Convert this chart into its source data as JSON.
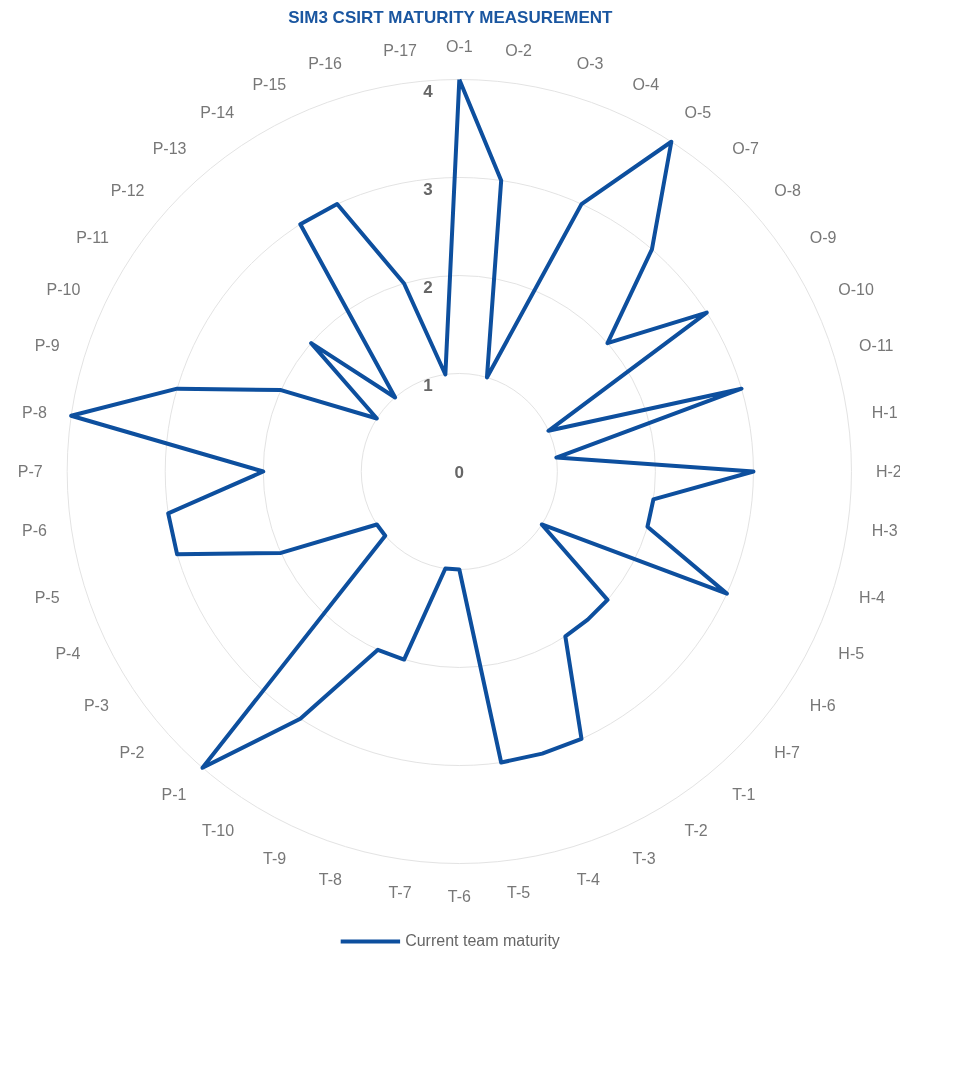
{
  "chart_data": {
    "type": "radar",
    "title": "SIM3 CSIRT MATURITY MEASUREMENT",
    "categories": [
      "O-1",
      "O-2",
      "O-3",
      "O-4",
      "O-5",
      "O-7",
      "O-8",
      "O-9",
      "O-10",
      "O-11",
      "H-1",
      "H-2",
      "H-3",
      "H-4",
      "H-5",
      "H-6",
      "H-7",
      "T-1",
      "T-2",
      "T-3",
      "T-4",
      "T-5",
      "T-6",
      "T-7",
      "T-8",
      "T-9",
      "T-10",
      "P-1",
      "P-2",
      "P-3",
      "P-4",
      "P-5",
      "P-6",
      "P-7",
      "P-8",
      "P-9",
      "P-10",
      "P-11",
      "P-12",
      "P-13",
      "P-14",
      "P-15",
      "P-16",
      "P-17"
    ],
    "series": [
      {
        "name": "Current team maturity",
        "color": "#0d4f9e",
        "values": [
          4,
          3,
          1,
          3,
          4,
          3,
          2,
          3,
          1,
          3,
          1,
          3,
          2,
          2,
          3,
          1,
          2,
          2,
          2,
          3,
          3,
          3,
          1,
          1,
          2,
          2,
          3,
          4,
          1,
          1,
          2,
          3,
          3,
          2,
          4,
          3,
          2,
          1,
          2,
          1,
          3,
          3,
          2,
          1
        ]
      }
    ],
    "ylim": [
      0,
      4
    ],
    "yticks": [
      0,
      1,
      2,
      3,
      4
    ],
    "grid": true,
    "legend": "bottom"
  }
}
